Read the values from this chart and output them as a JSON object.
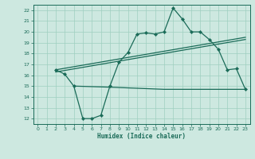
{
  "xlabel": "Humidex (Indice chaleur)",
  "ylabel": "",
  "bg_color": "#cde8e0",
  "grid_color": "#9ecfbf",
  "line_color": "#1a6b58",
  "xlim": [
    -0.5,
    23.5
  ],
  "ylim": [
    11.5,
    22.5
  ],
  "xticks": [
    0,
    1,
    2,
    3,
    4,
    5,
    6,
    7,
    8,
    9,
    10,
    11,
    12,
    13,
    14,
    15,
    16,
    17,
    18,
    19,
    20,
    21,
    22,
    23
  ],
  "yticks": [
    12,
    13,
    14,
    15,
    16,
    17,
    18,
    19,
    20,
    21,
    22
  ],
  "curve1_x": [
    2,
    3,
    4,
    5,
    6,
    7,
    8,
    9,
    10,
    11,
    12,
    13,
    14,
    15,
    16,
    17,
    18,
    19,
    20,
    21,
    22,
    23
  ],
  "curve1_y": [
    16.5,
    16.1,
    15.0,
    12.0,
    12.0,
    12.3,
    15.0,
    17.2,
    18.1,
    19.8,
    19.9,
    19.8,
    20.0,
    22.2,
    21.2,
    20.0,
    20.0,
    19.3,
    18.4,
    16.5,
    16.6,
    14.7
  ],
  "line2_x": [
    2,
    23
  ],
  "line2_y": [
    16.5,
    19.5
  ],
  "line3_x": [
    2,
    23
  ],
  "line3_y": [
    16.3,
    19.3
  ],
  "flat_line_x": [
    4,
    8,
    14,
    19,
    22,
    23
  ],
  "flat_line_y": [
    15.0,
    14.9,
    14.7,
    14.7,
    14.7,
    14.7
  ]
}
